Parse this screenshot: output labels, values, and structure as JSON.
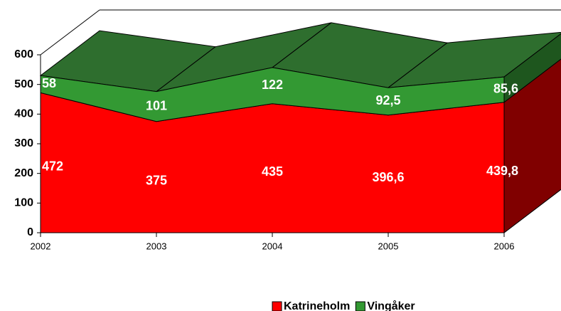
{
  "chart_data": {
    "type": "area",
    "stacked": true,
    "three_d": true,
    "categories": [
      "2002",
      "2003",
      "2004",
      "2005",
      "2006"
    ],
    "series": [
      {
        "name": "Katrineholm",
        "color": "#ff0000",
        "values": [
          472,
          375,
          435,
          396.6,
          439.8
        ],
        "value_labels": [
          "472",
          "375",
          "435",
          "396,6",
          "439,8"
        ]
      },
      {
        "name": "Vingåker",
        "color": "#339933",
        "values": [
          58,
          101,
          122,
          92.5,
          85.6
        ],
        "value_labels": [
          "58",
          "101",
          "122",
          "92,5",
          "85,6"
        ]
      }
    ],
    "ylim": [
      0,
      600
    ],
    "yticks": [
      0,
      100,
      200,
      300,
      400,
      500,
      600
    ],
    "legend": "bottom"
  }
}
